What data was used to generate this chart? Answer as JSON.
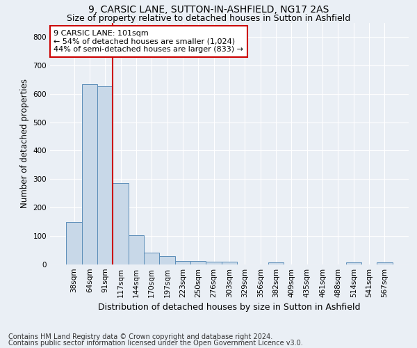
{
  "title": "9, CARSIC LANE, SUTTON-IN-ASHFIELD, NG17 2AS",
  "subtitle": "Size of property relative to detached houses in Sutton in Ashfield",
  "xlabel": "Distribution of detached houses by size in Sutton in Ashfield",
  "ylabel": "Number of detached properties",
  "footnote1": "Contains HM Land Registry data © Crown copyright and database right 2024.",
  "footnote2": "Contains public sector information licensed under the Open Government Licence v3.0.",
  "bar_labels": [
    "38sqm",
    "64sqm",
    "91sqm",
    "117sqm",
    "144sqm",
    "170sqm",
    "197sqm",
    "223sqm",
    "250sqm",
    "276sqm",
    "303sqm",
    "329sqm",
    "356sqm",
    "382sqm",
    "409sqm",
    "435sqm",
    "461sqm",
    "488sqm",
    "514sqm",
    "541sqm",
    "567sqm"
  ],
  "bar_values": [
    150,
    633,
    626,
    287,
    103,
    42,
    29,
    12,
    12,
    10,
    10,
    0,
    0,
    7,
    0,
    0,
    0,
    0,
    8,
    0,
    8
  ],
  "bar_color": "#c8d8e8",
  "bar_edge_color": "#5b8db8",
  "red_line_index": 2,
  "red_line_color": "#cc0000",
  "annotation_text": "9 CARSIC LANE: 101sqm\n← 54% of detached houses are smaller (1,024)\n44% of semi-detached houses are larger (833) →",
  "annotation_box_color": "white",
  "annotation_box_edge": "#cc0000",
  "ylim": [
    0,
    850
  ],
  "yticks": [
    0,
    100,
    200,
    300,
    400,
    500,
    600,
    700,
    800
  ],
  "background_color": "#eaeff5",
  "plot_bg_color": "#eaeff5",
  "grid_color": "white",
  "title_fontsize": 10,
  "subtitle_fontsize": 9,
  "xlabel_fontsize": 9,
  "ylabel_fontsize": 8.5,
  "tick_fontsize": 7.5,
  "annotation_fontsize": 8,
  "footnote_fontsize": 7
}
